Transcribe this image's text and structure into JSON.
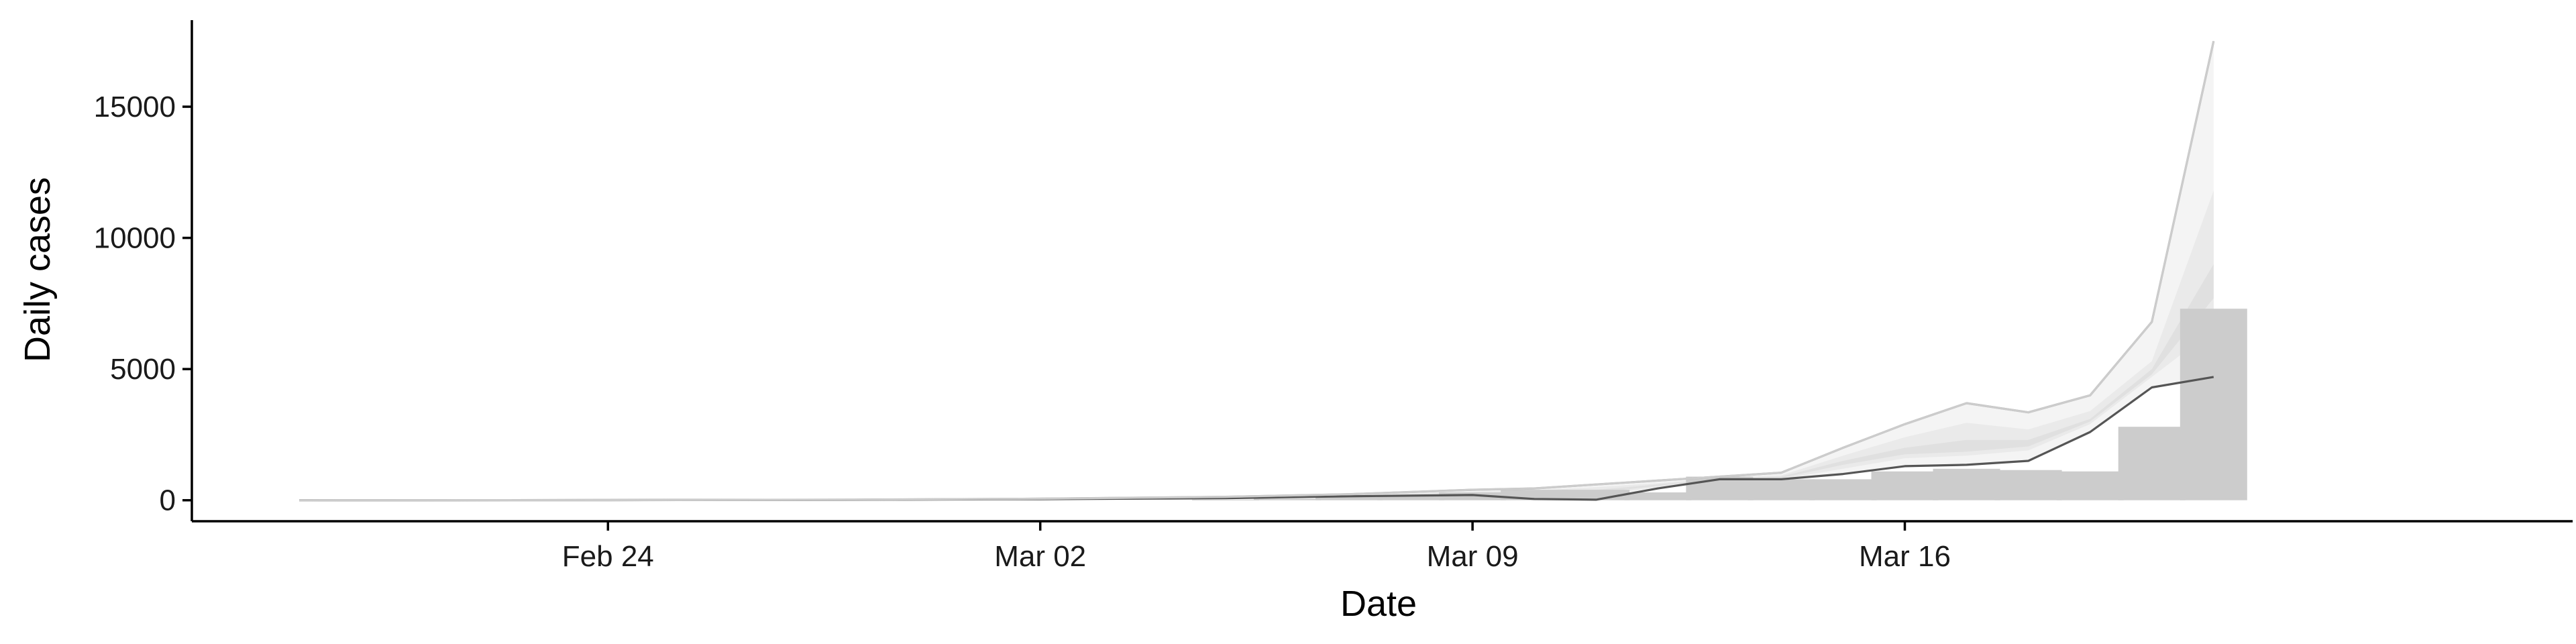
{
  "chart_data": {
    "type": "bar",
    "xlabel": "Date",
    "ylabel": "Daily cases",
    "title": "",
    "x_axis": {
      "type": "date",
      "range": [
        "2020-02-19",
        "2020-03-25"
      ],
      "ticks": [
        {
          "date": "2020-02-24",
          "label": "Feb 24"
        },
        {
          "date": "2020-03-02",
          "label": "Mar 02"
        },
        {
          "date": "2020-03-09",
          "label": "Mar 09"
        },
        {
          "date": "2020-03-16",
          "label": "Mar 16"
        }
      ]
    },
    "y_axis": {
      "range": [
        -800,
        18300
      ],
      "ticks": [
        0,
        5000,
        10000,
        15000
      ]
    },
    "grid": false,
    "legend": "none",
    "colors": {
      "bars": "#cccccc",
      "band_outer": "#f4f4f4",
      "band_mid": "#eaeaea",
      "band_inner": "#e0e0e0",
      "line_main": "#555555",
      "line_upper": "#aaaaaa",
      "line_outer": "#cccccc",
      "axis": "#000000"
    },
    "bars": [
      {
        "date": "2020-03-05",
        "value": 20
      },
      {
        "date": "2020-03-06",
        "value": 60
      },
      {
        "date": "2020-03-07",
        "value": 120
      },
      {
        "date": "2020-03-08",
        "value": 200
      },
      {
        "date": "2020-03-09",
        "value": 300
      },
      {
        "date": "2020-03-10",
        "value": 400
      },
      {
        "date": "2020-03-11",
        "value": 400
      },
      {
        "date": "2020-03-12",
        "value": 300
      },
      {
        "date": "2020-03-13",
        "value": 900
      },
      {
        "date": "2020-03-14",
        "value": 800
      },
      {
        "date": "2020-03-15",
        "value": 800
      },
      {
        "date": "2020-03-16",
        "value": 1100
      },
      {
        "date": "2020-03-17",
        "value": 1200
      },
      {
        "date": "2020-03-18",
        "value": 1150
      },
      {
        "date": "2020-03-19",
        "value": 1100
      },
      {
        "date": "2020-03-20",
        "value": 2800
      },
      {
        "date": "2020-03-21",
        "value": 7300
      }
    ],
    "series": [
      {
        "role": "estimate",
        "points": [
          {
            "date": "2020-02-19",
            "value": 0
          },
          {
            "date": "2020-02-24",
            "value": 5
          },
          {
            "date": "2020-02-28",
            "value": 15
          },
          {
            "date": "2020-03-02",
            "value": 40
          },
          {
            "date": "2020-03-05",
            "value": 80
          },
          {
            "date": "2020-03-07",
            "value": 150
          },
          {
            "date": "2020-03-09",
            "value": 200
          },
          {
            "date": "2020-03-10",
            "value": 50
          },
          {
            "date": "2020-03-11",
            "value": 20
          },
          {
            "date": "2020-03-12",
            "value": 450
          },
          {
            "date": "2020-03-13",
            "value": 800
          },
          {
            "date": "2020-03-14",
            "value": 800
          },
          {
            "date": "2020-03-15",
            "value": 1000
          },
          {
            "date": "2020-03-16",
            "value": 1300
          },
          {
            "date": "2020-03-17",
            "value": 1350
          },
          {
            "date": "2020-03-18",
            "value": 1500
          },
          {
            "date": "2020-03-19",
            "value": 2600
          },
          {
            "date": "2020-03-20",
            "value": 4300
          },
          {
            "date": "2020-03-21",
            "value": 4700
          }
        ]
      },
      {
        "role": "upper",
        "points": [
          {
            "date": "2020-02-19",
            "value": 0
          },
          {
            "date": "2020-02-24",
            "value": 5
          },
          {
            "date": "2020-02-28",
            "value": 20
          },
          {
            "date": "2020-03-02",
            "value": 60
          },
          {
            "date": "2020-03-05",
            "value": 130
          },
          {
            "date": "2020-03-07",
            "value": 230
          },
          {
            "date": "2020-03-09",
            "value": 400
          },
          {
            "date": "2020-03-10",
            "value": 450
          },
          {
            "date": "2020-03-11",
            "value": 600
          },
          {
            "date": "2020-03-12",
            "value": 750
          },
          {
            "date": "2020-03-13",
            "value": 900
          },
          {
            "date": "2020-03-14",
            "value": 1050
          },
          {
            "date": "2020-03-15",
            "value": 2000
          },
          {
            "date": "2020-03-16",
            "value": 2900
          },
          {
            "date": "2020-03-17",
            "value": 3700
          },
          {
            "date": "2020-03-18",
            "value": 3350
          },
          {
            "date": "2020-03-19",
            "value": 4000
          },
          {
            "date": "2020-03-20",
            "value": 6800
          },
          {
            "date": "2020-03-21",
            "value": 17500
          }
        ]
      }
    ],
    "bands": [
      {
        "role": "outer",
        "upper": [
          0,
          5,
          20,
          60,
          130,
          230,
          400,
          450,
          600,
          750,
          900,
          1050,
          2000,
          2900,
          3700,
          3350,
          4000,
          6800,
          17500
        ],
        "lower": [
          0,
          5,
          15,
          40,
          80,
          150,
          200,
          50,
          20,
          450,
          800,
          800,
          1000,
          1300,
          1350,
          1500,
          2600,
          4300,
          4700
        ]
      },
      {
        "role": "mid",
        "upper": [
          0,
          5,
          18,
          50,
          110,
          200,
          330,
          380,
          500,
          650,
          850,
          950,
          1700,
          2400,
          2950,
          2700,
          3400,
          5300,
          11800
        ],
        "lower": [
          0,
          5,
          15,
          40,
          90,
          170,
          250,
          200,
          200,
          500,
          800,
          800,
          1200,
          1600,
          1700,
          1900,
          2900,
          4700,
          6500
        ]
      },
      {
        "role": "inner",
        "upper": [
          0,
          5,
          17,
          45,
          100,
          180,
          300,
          320,
          400,
          600,
          830,
          900,
          1500,
          2000,
          2300,
          2300,
          3100,
          5000,
          9000
        ],
        "lower": [
          0,
          5,
          16,
          42,
          95,
          175,
          270,
          250,
          280,
          550,
          820,
          850,
          1350,
          1750,
          1850,
          2050,
          3000,
          4800,
          7700
        ]
      }
    ]
  }
}
